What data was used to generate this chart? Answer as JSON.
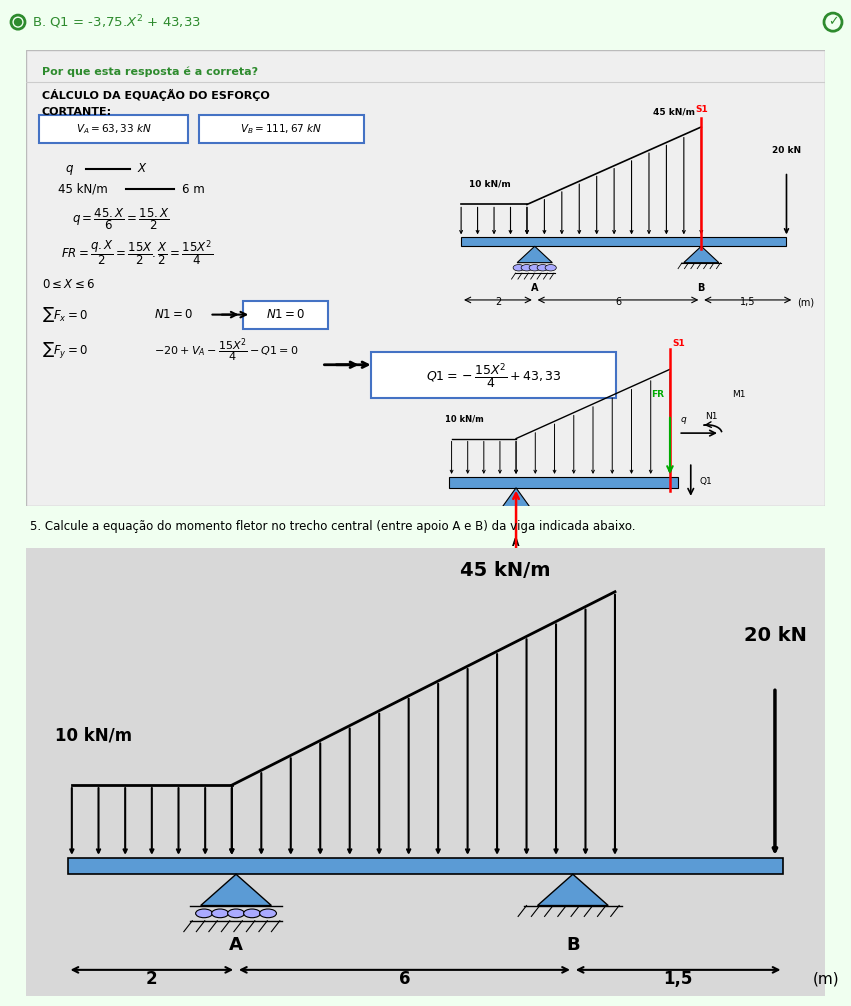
{
  "bg_top": "#f0fff0",
  "bg_panel": "#efefef",
  "bg_bottom": "#e0e0e0",
  "green_text": "#2e8b2e",
  "blue_border": "#4472c4",
  "beam_color": "#5b9bd5",
  "red": "#ff0000",
  "green_arrow": "#00aa00",
  "title_top": "B. Q1 = -3,75.X² + 43,33",
  "why_label": "Por que esta resposta é a correta?",
  "q5_label": "5. Calcule a equação do momento fletor no trecho central (entre apoio A e B) da viga indicada abaixo."
}
